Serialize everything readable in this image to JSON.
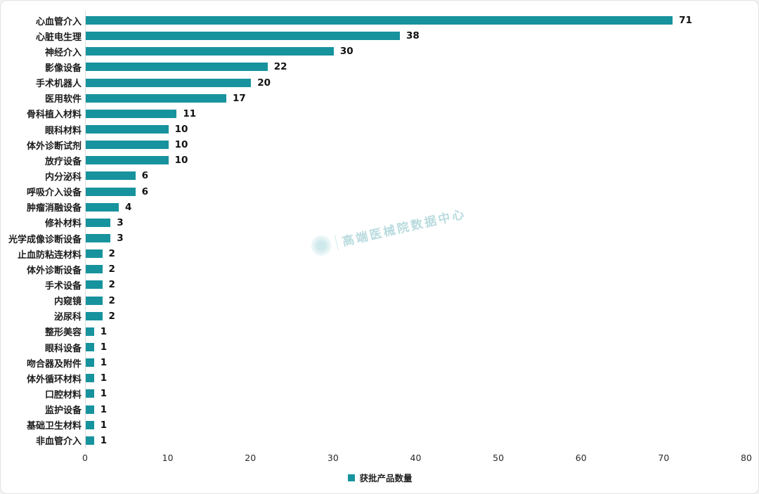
{
  "chart_data": {
    "type": "bar",
    "orientation": "horizontal",
    "title": "",
    "xlabel": "",
    "ylabel": "",
    "categories": [
      "心血管介入",
      "心脏电生理",
      "神经介入",
      "影像设备",
      "手术机器人",
      "医用软件",
      "骨科植入材料",
      "眼科材料",
      "体外诊断试剂",
      "放疗设备",
      "内分泌科",
      "呼吸介入设备",
      "肿瘤消融设备",
      "修补材料",
      "光学成像诊断设备",
      "止血防粘连材料",
      "体外诊断设备",
      "手术设备",
      "内窥镜",
      "泌尿科",
      "整形美容",
      "眼科设备",
      "吻合器及附件",
      "体外循环材料",
      "口腔材料",
      "监护设备",
      "基础卫生材料",
      "非血管介入"
    ],
    "values": [
      71,
      38,
      30,
      22,
      20,
      17,
      11,
      10,
      10,
      10,
      6,
      6,
      4,
      3,
      3,
      2,
      2,
      2,
      2,
      2,
      1,
      1,
      1,
      1,
      1,
      1,
      1,
      1
    ],
    "value_labels_shown": true,
    "xlim": [
      0,
      80
    ],
    "xticks": [
      0,
      10,
      20,
      30,
      40,
      50,
      60,
      70,
      80
    ],
    "grid": "off",
    "legend_position": "bottom",
    "legend": [
      {
        "label": "获批产品数量",
        "color": "#17939e"
      }
    ],
    "bar_color": "#17939e"
  },
  "watermark": {
    "text": "高端医械院数据中心",
    "icon": "dotted-globe-icon",
    "color": "#4aa3ab"
  },
  "colors": {
    "bar": "#17939e",
    "background": "#ffffff",
    "axis_line": "#dcdcdc",
    "label_text": "#1c1c1c"
  }
}
